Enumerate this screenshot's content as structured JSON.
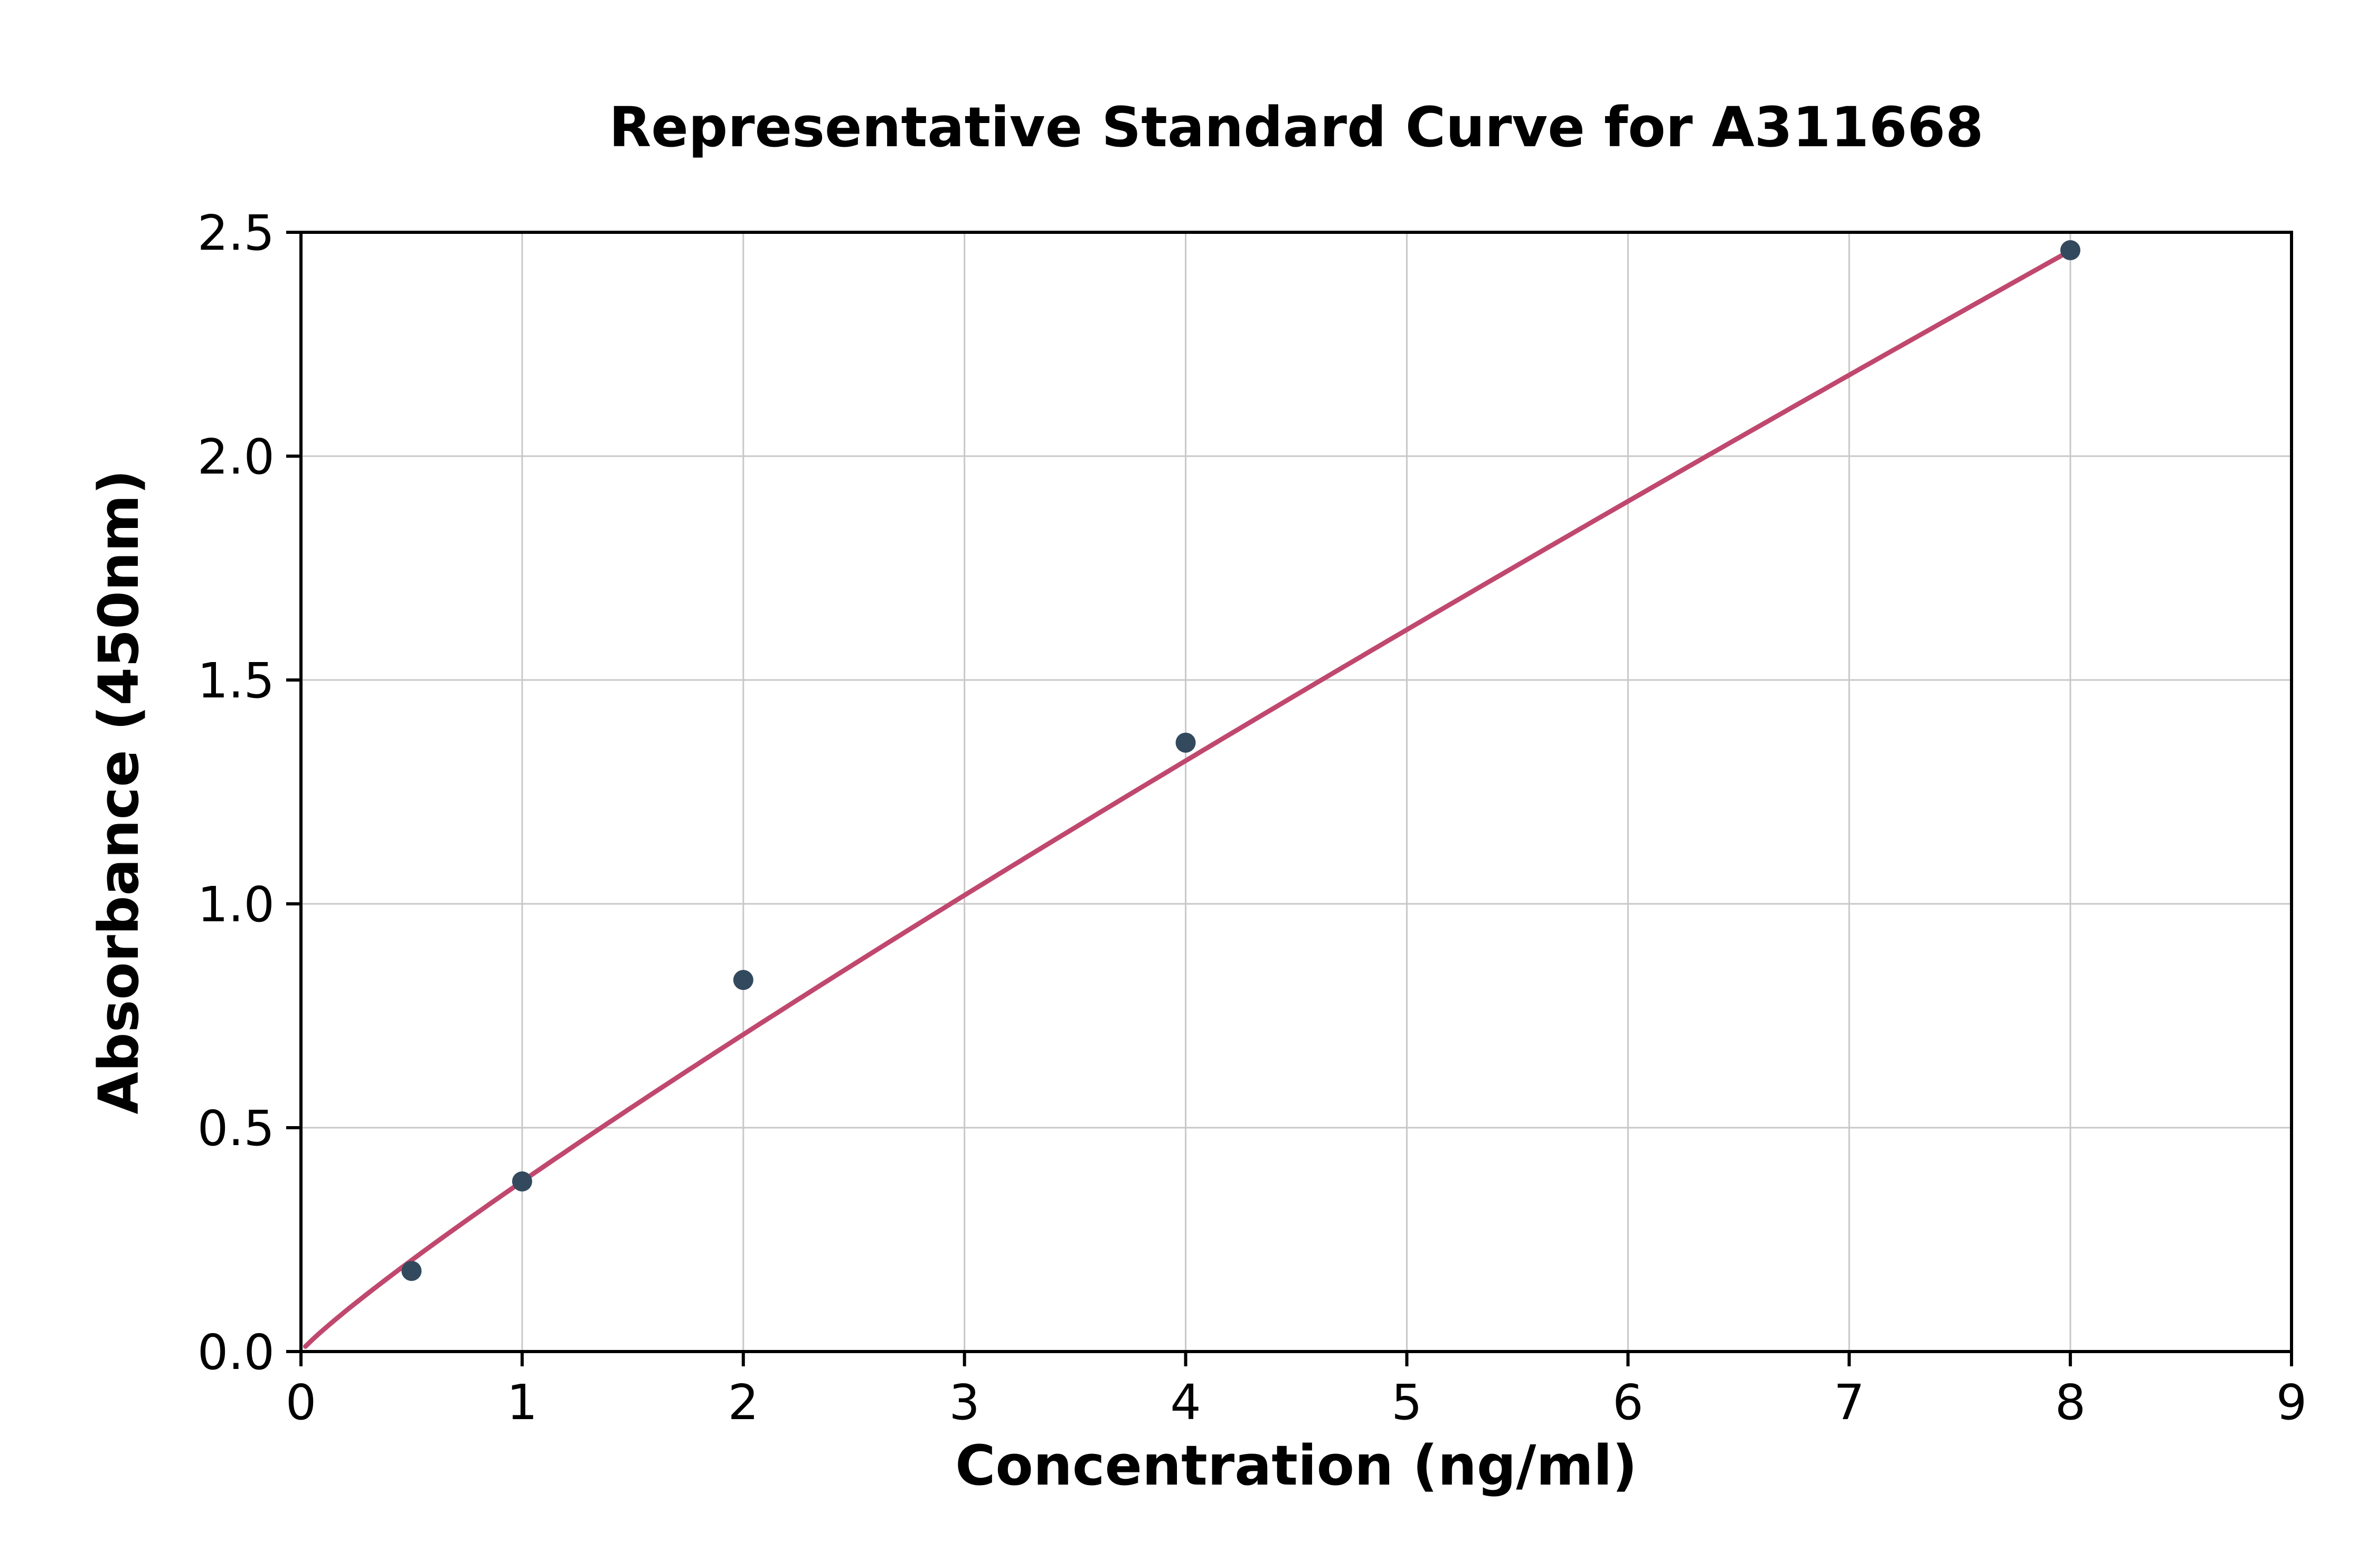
{
  "chart_data": {
    "type": "scatter",
    "title": "Representative Standard Curve for A311668",
    "xlabel": "Concentration (ng/ml)",
    "ylabel": "Absorbance (450nm)",
    "xlim": [
      0,
      9
    ],
    "ylim": [
      0,
      2.5
    ],
    "x_ticks": [
      0,
      1,
      2,
      3,
      4,
      5,
      6,
      7,
      8,
      9
    ],
    "x_tick_labels": [
      "0",
      "1",
      "2",
      "3",
      "4",
      "5",
      "6",
      "7",
      "8",
      "9"
    ],
    "y_ticks": [
      0.0,
      0.5,
      1.0,
      1.5,
      2.0,
      2.5
    ],
    "y_tick_labels": [
      "0.0",
      "0.5",
      "1.0",
      "1.5",
      "2.0",
      "2.5"
    ],
    "grid": true,
    "legend": "none",
    "points": {
      "x": [
        0.5,
        1,
        2,
        4,
        8
      ],
      "y": [
        0.18,
        0.38,
        0.83,
        1.36,
        2.46
      ]
    },
    "curve_fit": {
      "type": "power",
      "a": 0.38,
      "b": 0.898,
      "x_start": 0.02,
      "x_end": 8
    },
    "colors": {
      "curve": "#c0486e",
      "points": "#33495e",
      "grid": "#c8c8c8",
      "axis": "#000000"
    }
  }
}
